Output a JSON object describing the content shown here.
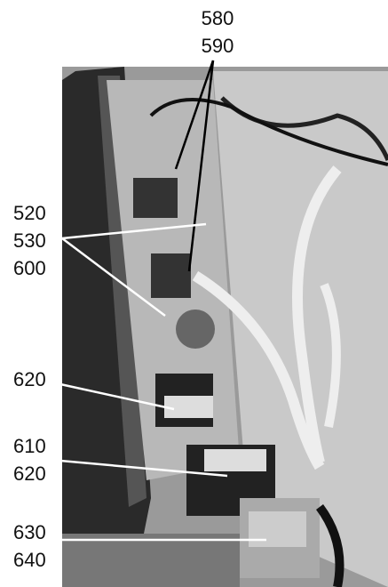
{
  "callouts": [
    {
      "labels": [
        "580",
        "590"
      ]
    },
    {
      "labels": [
        "520",
        "530",
        "600"
      ]
    },
    {
      "labels": [
        "620"
      ]
    },
    {
      "labels": [
        "610",
        "620"
      ]
    },
    {
      "labels": [
        "630",
        "640"
      ]
    }
  ]
}
